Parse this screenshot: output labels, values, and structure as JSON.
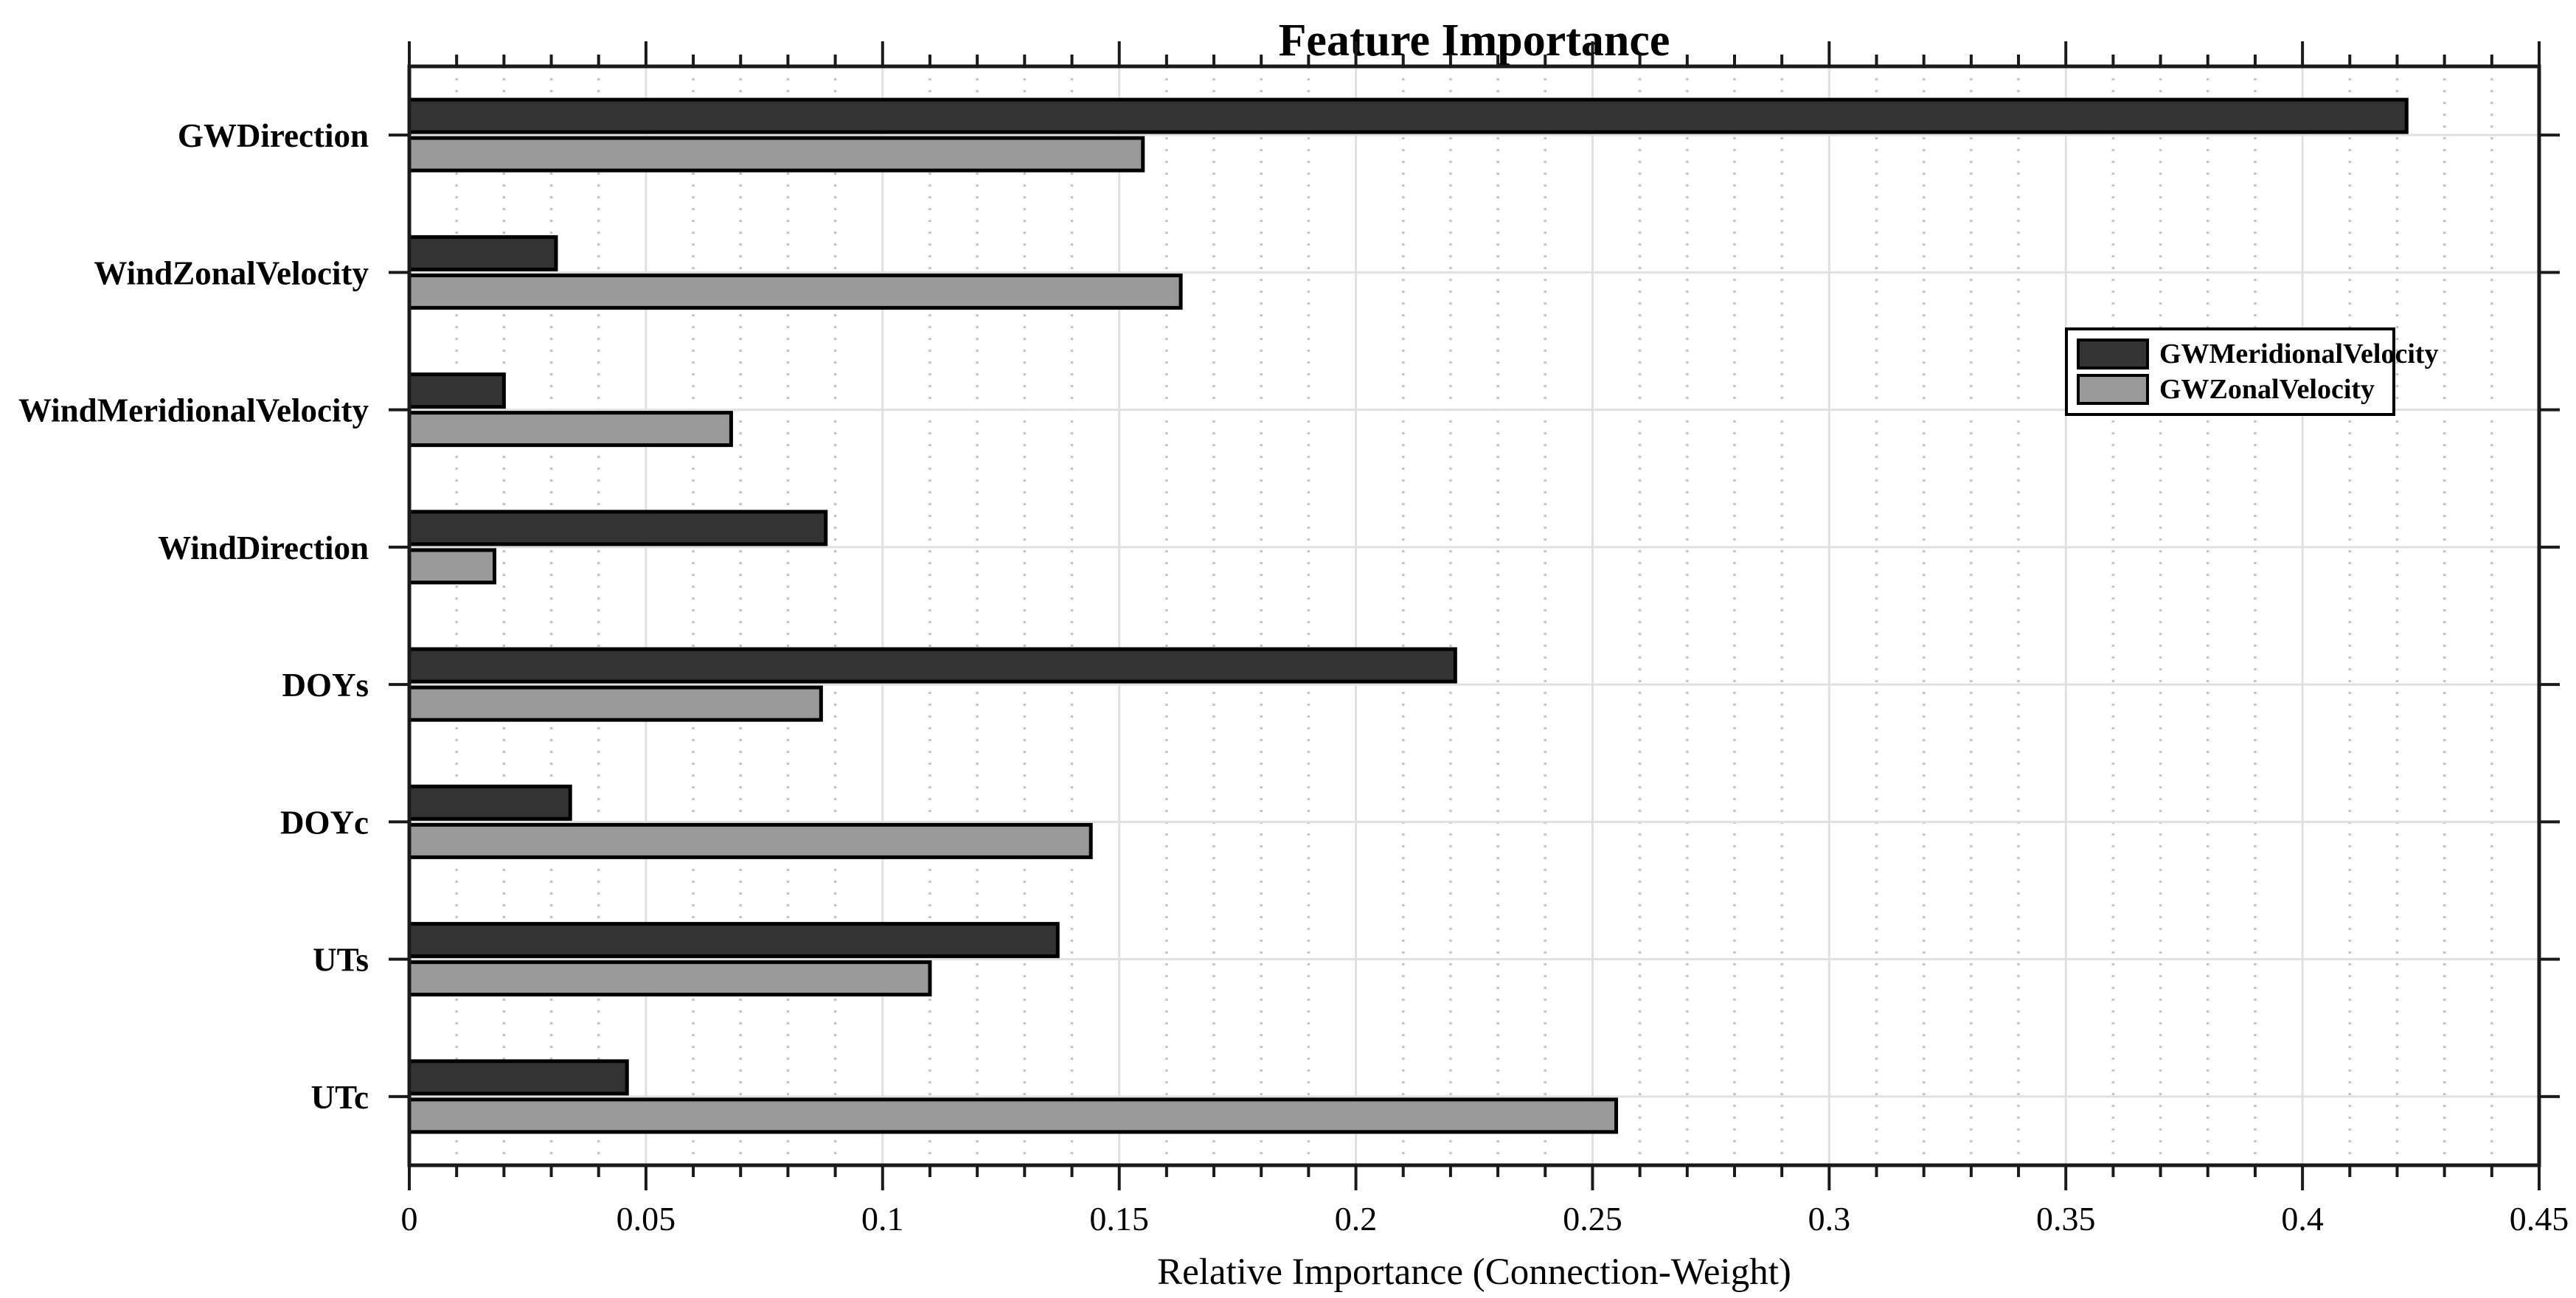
{
  "chart_data": {
    "type": "bar",
    "orientation": "horizontal",
    "title": "Feature Importance",
    "xlabel": "Relative Importance (Connection-Weight)",
    "categories": [
      "GWDirection",
      "WindZonalVelocity",
      "WindMeridionalVelocity",
      "WindDirection",
      "DOYs",
      "DOYc",
      "UTs",
      "UTc"
    ],
    "series": [
      {
        "name": "GWMeridionalVelocity",
        "color": "#333333",
        "values": [
          0.422,
          0.031,
          0.02,
          0.088,
          0.221,
          0.034,
          0.137,
          0.046
        ]
      },
      {
        "name": "GWZonalVelocity",
        "color": "#999999",
        "values": [
          0.155,
          0.163,
          0.068,
          0.018,
          0.087,
          0.144,
          0.11,
          0.255
        ]
      }
    ],
    "xlim": [
      0,
      0.45
    ],
    "xticks": [
      {
        "value": 0,
        "label": "0"
      },
      {
        "value": 0.05,
        "label": "0.05"
      },
      {
        "value": 0.1,
        "label": "0.1"
      },
      {
        "value": 0.15,
        "label": "0.15"
      },
      {
        "value": 0.2,
        "label": "0.2"
      },
      {
        "value": 0.25,
        "label": "0.25"
      },
      {
        "value": 0.3,
        "label": "0.3"
      },
      {
        "value": 0.35,
        "label": "0.35"
      },
      {
        "value": 0.4,
        "label": "0.4"
      },
      {
        "value": 0.45,
        "label": "0.45"
      }
    ],
    "minor_tick_step": 0.01,
    "grid": {
      "major_style": "solid",
      "minor_style": "dotted",
      "category_lines": "solid"
    },
    "legend": {
      "position": "upper-right",
      "entries": [
        "GWMeridionalVelocity",
        "GWZonalVelocity"
      ]
    },
    "colors": {
      "axis": "#1a1a1a",
      "grid_major": "#e0e0e0",
      "grid_minor": "#c3c3c3",
      "bar_edge": "#000000",
      "background": "#ffffff"
    }
  }
}
